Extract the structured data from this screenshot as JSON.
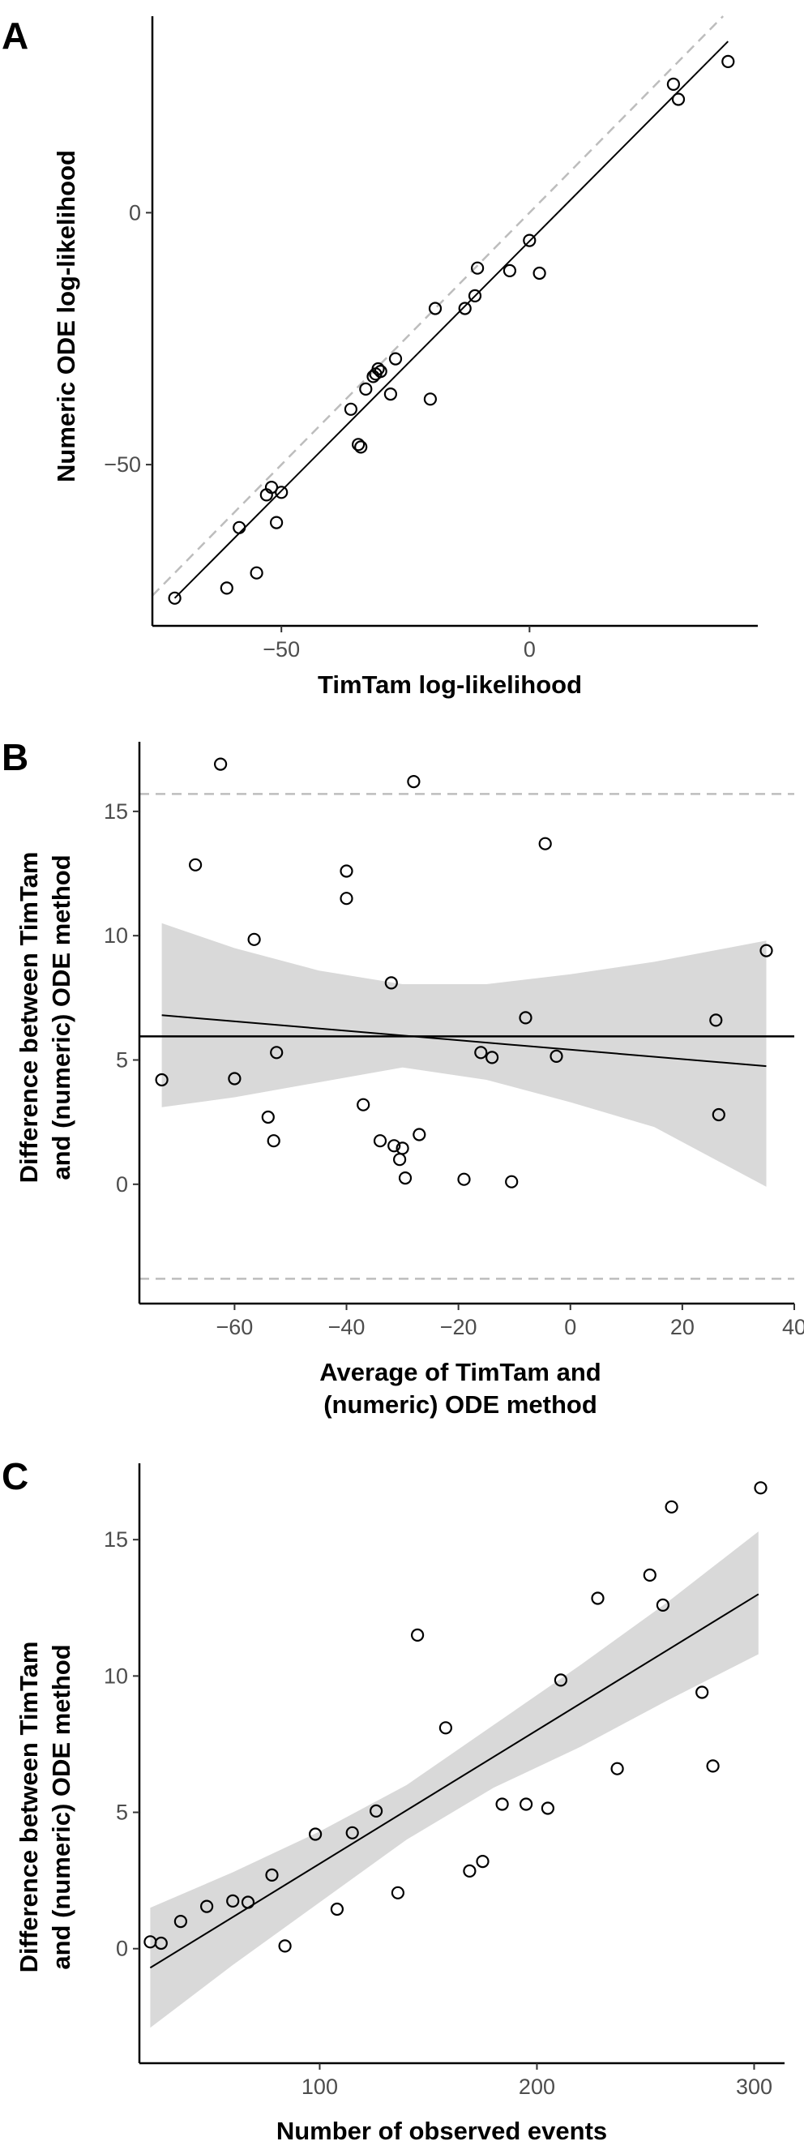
{
  "chart_data": [
    {
      "panel": "A",
      "type": "scatter",
      "xlabel": "TimTam log-likelihood",
      "ylabel": "Numeric ODE log-likelihood",
      "xlim": [
        -76,
        46
      ],
      "ylim": [
        -82,
        39
      ],
      "xticks": [
        -50,
        0
      ],
      "yticks": [
        -50,
        0
      ],
      "identity_line": true,
      "fit_line": {
        "x0": -71.5,
        "y0": -76.5,
        "x1": 40,
        "y1": 34
      },
      "points": [
        {
          "x": -71.5,
          "y": -76.5
        },
        {
          "x": -61,
          "y": -74.5
        },
        {
          "x": -58.5,
          "y": -62.5
        },
        {
          "x": -55,
          "y": -71.5
        },
        {
          "x": -53,
          "y": -56
        },
        {
          "x": -52,
          "y": -54.5
        },
        {
          "x": -51,
          "y": -61.5
        },
        {
          "x": -50,
          "y": -55.5
        },
        {
          "x": -36,
          "y": -39
        },
        {
          "x": -34.5,
          "y": -46
        },
        {
          "x": -34,
          "y": -46.5
        },
        {
          "x": -33,
          "y": -35
        },
        {
          "x": -31.5,
          "y": -32.5
        },
        {
          "x": -31,
          "y": -32
        },
        {
          "x": -30.5,
          "y": -31
        },
        {
          "x": -30,
          "y": -31.5
        },
        {
          "x": -28,
          "y": -36
        },
        {
          "x": -27,
          "y": -29
        },
        {
          "x": -20,
          "y": -37
        },
        {
          "x": -19,
          "y": -19
        },
        {
          "x": -13,
          "y": -19
        },
        {
          "x": -11,
          "y": -16.5
        },
        {
          "x": -10.5,
          "y": -11
        },
        {
          "x": -4,
          "y": -11.5
        },
        {
          "x": 0,
          "y": -5.5
        },
        {
          "x": 2,
          "y": -12
        },
        {
          "x": 29,
          "y": 25.5
        },
        {
          "x": 30,
          "y": 22.5
        },
        {
          "x": 40,
          "y": 30
        }
      ]
    },
    {
      "panel": "B",
      "type": "scatter",
      "xlabel": "Average of TimTam and (numeric) ODE method",
      "ylabel": "Difference between TimTam and (numeric) ODE method",
      "xlim": [
        -77,
        40
      ],
      "ylim": [
        -4.8,
        17.8
      ],
      "xticks": [
        -60,
        -40,
        -20,
        0,
        20,
        40
      ],
      "yticks": [
        0,
        5,
        10,
        15
      ],
      "mean_line": 5.95,
      "limits_of_agreement": [
        15.7,
        -3.8
      ],
      "fit_line": {
        "x0": -73,
        "y0": 6.8,
        "x1": 35,
        "y1": 4.75
      },
      "band": {
        "x": [
          -73,
          -60,
          -45,
          -30,
          -15,
          0,
          15,
          35
        ],
        "upper": [
          10.5,
          9.5,
          8.6,
          8.05,
          8.05,
          8.45,
          8.95,
          9.8
        ],
        "lower": [
          3.1,
          3.5,
          4.1,
          4.7,
          4.2,
          3.3,
          2.3,
          -0.1
        ]
      },
      "points": [
        {
          "x": -73,
          "y": 4.2
        },
        {
          "x": -67,
          "y": 12.85
        },
        {
          "x": -62.5,
          "y": 16.9
        },
        {
          "x": -60,
          "y": 4.25
        },
        {
          "x": -56.5,
          "y": 9.85
        },
        {
          "x": -54,
          "y": 2.7
        },
        {
          "x": -53,
          "y": 1.75
        },
        {
          "x": -52.5,
          "y": 5.3
        },
        {
          "x": -40,
          "y": 11.5
        },
        {
          "x": -40,
          "y": 12.6
        },
        {
          "x": -37,
          "y": 3.2
        },
        {
          "x": -34,
          "y": 1.75
        },
        {
          "x": -32,
          "y": 8.1
        },
        {
          "x": -31.5,
          "y": 1.55
        },
        {
          "x": -30.5,
          "y": 1.0
        },
        {
          "x": -30,
          "y": 1.45
        },
        {
          "x": -29.5,
          "y": 0.25
        },
        {
          "x": -28,
          "y": 16.2
        },
        {
          "x": -27,
          "y": 2.0
        },
        {
          "x": -19,
          "y": 0.2
        },
        {
          "x": -16,
          "y": 5.3
        },
        {
          "x": -14,
          "y": 5.1
        },
        {
          "x": -10.5,
          "y": 0.1
        },
        {
          "x": -8,
          "y": 6.7
        },
        {
          "x": -4.5,
          "y": 13.7
        },
        {
          "x": -2.5,
          "y": 5.15
        },
        {
          "x": 26,
          "y": 6.6
        },
        {
          "x": 26.5,
          "y": 2.8
        },
        {
          "x": 35,
          "y": 9.4
        }
      ]
    },
    {
      "panel": "C",
      "type": "scatter",
      "xlabel": "Number of observed events",
      "ylabel": "Difference between TimTam and (numeric) ODE method",
      "xlim": [
        17,
        314
      ],
      "ylim": [
        -4.2,
        17.8
      ],
      "xticks": [
        100,
        200,
        300
      ],
      "yticks": [
        0,
        5,
        10,
        15
      ],
      "fit_line": {
        "x0": 22,
        "y0": -0.7,
        "x1": 302,
        "y1": 13.0
      },
      "band": {
        "x": [
          22,
          60,
          100,
          140,
          180,
          220,
          260,
          302
        ],
        "upper": [
          1.5,
          2.8,
          4.3,
          6.0,
          8.2,
          10.4,
          12.7,
          15.3
        ],
        "lower": [
          -2.9,
          -0.6,
          1.7,
          4.0,
          5.9,
          7.4,
          9.1,
          10.8
        ]
      },
      "points": [
        {
          "x": 22,
          "y": 0.25
        },
        {
          "x": 27,
          "y": 0.2
        },
        {
          "x": 36,
          "y": 1.0
        },
        {
          "x": 48,
          "y": 1.55
        },
        {
          "x": 60,
          "y": 1.75
        },
        {
          "x": 67,
          "y": 1.7
        },
        {
          "x": 78,
          "y": 2.7
        },
        {
          "x": 84,
          "y": 0.1
        },
        {
          "x": 98,
          "y": 4.2
        },
        {
          "x": 108,
          "y": 1.45
        },
        {
          "x": 115,
          "y": 4.25
        },
        {
          "x": 126,
          "y": 5.05
        },
        {
          "x": 136,
          "y": 2.05
        },
        {
          "x": 145,
          "y": 11.5
        },
        {
          "x": 158,
          "y": 8.1
        },
        {
          "x": 169,
          "y": 2.85
        },
        {
          "x": 175,
          "y": 3.2
        },
        {
          "x": 184,
          "y": 5.3
        },
        {
          "x": 195,
          "y": 5.3
        },
        {
          "x": 205,
          "y": 5.15
        },
        {
          "x": 211,
          "y": 9.85
        },
        {
          "x": 228,
          "y": 12.85
        },
        {
          "x": 237,
          "y": 6.6
        },
        {
          "x": 252,
          "y": 13.7
        },
        {
          "x": 258,
          "y": 12.6
        },
        {
          "x": 262,
          "y": 16.2
        },
        {
          "x": 276,
          "y": 9.4
        },
        {
          "x": 281,
          "y": 6.7
        },
        {
          "x": 303,
          "y": 16.9
        }
      ]
    }
  ],
  "panels": [
    {
      "letter": "A"
    },
    {
      "letter": "B"
    },
    {
      "letter": "C"
    }
  ]
}
